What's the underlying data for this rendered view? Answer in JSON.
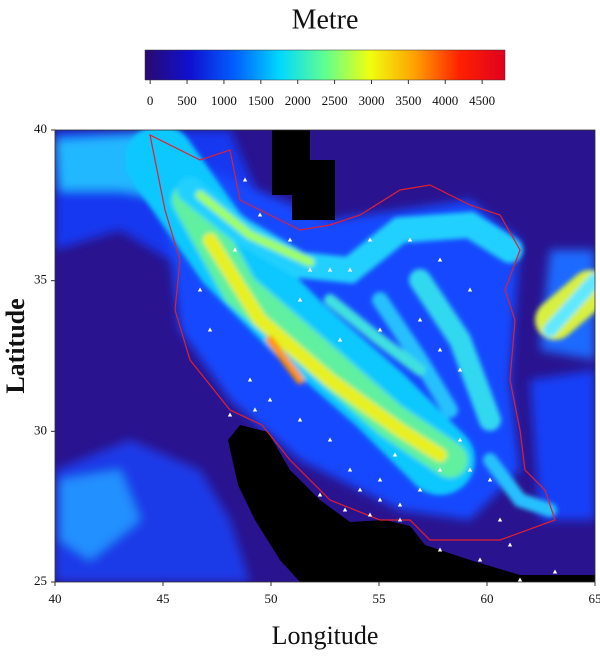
{
  "colorbar": {
    "title": "Metre",
    "lim": [
      -70,
      4810
    ],
    "ticks": [
      0,
      500,
      1000,
      1500,
      2000,
      2500,
      3000,
      3500,
      4000,
      4500
    ],
    "colors": [
      "#2a0a6e",
      "#1010d0",
      "#0060ff",
      "#00d8ff",
      "#60ff90",
      "#f0ff10",
      "#ffa000",
      "#ff2000",
      "#e00020"
    ]
  },
  "map": {
    "xlabel": "Longitude",
    "ylabel": "Latitude",
    "xlim": [
      40,
      65
    ],
    "ylim": [
      25,
      40
    ],
    "xticks": [
      40,
      45,
      50,
      55,
      60,
      65
    ],
    "yticks": [
      25,
      30,
      35,
      40
    ]
  }
}
